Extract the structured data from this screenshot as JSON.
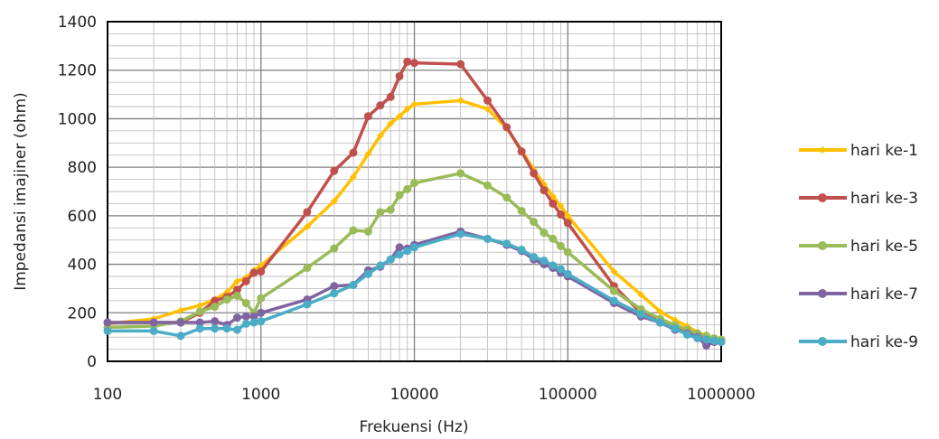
{
  "chart_data": {
    "type": "line",
    "title": "",
    "xlabel": "Frekuensi (Hz)",
    "ylabel": "Impedansi imajiner (ohm)",
    "x_scale": "log",
    "xlim": [
      100,
      1000000
    ],
    "ylim": [
      0,
      1400
    ],
    "x_ticks": [
      100,
      1000,
      10000,
      100000,
      1000000
    ],
    "x_tick_labels": [
      "100",
      "1000",
      "10000",
      "100000",
      "1000000"
    ],
    "y_ticks": [
      0,
      200,
      400,
      600,
      800,
      1000,
      1200,
      1400
    ],
    "y_tick_labels": [
      "0",
      "200",
      "400",
      "600",
      "800",
      "1000",
      "1200",
      "1400"
    ],
    "grid": "on",
    "legend_position": "right",
    "series": [
      {
        "name": "hari ke-1",
        "color": "#FFC000",
        "marker": "diamond",
        "points": [
          [
            100,
            155
          ],
          [
            200,
            175
          ],
          [
            300,
            210
          ],
          [
            400,
            230
          ],
          [
            500,
            255
          ],
          [
            600,
            285
          ],
          [
            700,
            330
          ],
          [
            800,
            345
          ],
          [
            900,
            375
          ],
          [
            1000,
            395
          ],
          [
            2000,
            555
          ],
          [
            3000,
            660
          ],
          [
            4000,
            760
          ],
          [
            5000,
            855
          ],
          [
            6000,
            930
          ],
          [
            7000,
            980
          ],
          [
            8000,
            1010
          ],
          [
            9000,
            1040
          ],
          [
            10000,
            1060
          ],
          [
            20000,
            1075
          ],
          [
            30000,
            1040
          ],
          [
            40000,
            960
          ],
          [
            50000,
            870
          ],
          [
            60000,
            790
          ],
          [
            70000,
            730
          ],
          [
            80000,
            680
          ],
          [
            90000,
            640
          ],
          [
            100000,
            600
          ],
          [
            200000,
            370
          ],
          [
            300000,
            275
          ],
          [
            400000,
            205
          ],
          [
            500000,
            170
          ],
          [
            600000,
            145
          ],
          [
            700000,
            120
          ],
          [
            800000,
            105
          ],
          [
            900000,
            95
          ],
          [
            1000000,
            90
          ]
        ]
      },
      {
        "name": "hari ke-3",
        "color": "#C0504D",
        "marker": "circle",
        "points": [
          [
            100,
            160
          ],
          [
            200,
            160
          ],
          [
            300,
            160
          ],
          [
            400,
            200
          ],
          [
            500,
            250
          ],
          [
            600,
            265
          ],
          [
            700,
            295
          ],
          [
            800,
            330
          ],
          [
            900,
            365
          ],
          [
            1000,
            370
          ],
          [
            2000,
            615
          ],
          [
            3000,
            785
          ],
          [
            4000,
            860
          ],
          [
            5000,
            1010
          ],
          [
            6000,
            1055
          ],
          [
            7000,
            1090
          ],
          [
            8000,
            1175
          ],
          [
            9000,
            1235
          ],
          [
            10000,
            1230
          ],
          [
            20000,
            1225
          ],
          [
            30000,
            1075
          ],
          [
            40000,
            965
          ],
          [
            50000,
            865
          ],
          [
            60000,
            775
          ],
          [
            70000,
            705
          ],
          [
            80000,
            650
          ],
          [
            90000,
            605
          ],
          [
            100000,
            570
          ],
          [
            200000,
            310
          ],
          [
            300000,
            200
          ],
          [
            400000,
            170
          ],
          [
            500000,
            145
          ],
          [
            600000,
            125
          ],
          [
            700000,
            110
          ],
          [
            800000,
            95
          ],
          [
            900000,
            85
          ],
          [
            1000000,
            80
          ]
        ]
      },
      {
        "name": "hari ke-5",
        "color": "#9BBB59",
        "marker": "circle",
        "points": [
          [
            100,
            140
          ],
          [
            200,
            145
          ],
          [
            300,
            165
          ],
          [
            400,
            205
          ],
          [
            500,
            225
          ],
          [
            600,
            255
          ],
          [
            700,
            270
          ],
          [
            800,
            240
          ],
          [
            900,
            200
          ],
          [
            1000,
            260
          ],
          [
            2000,
            385
          ],
          [
            3000,
            465
          ],
          [
            4000,
            540
          ],
          [
            5000,
            535
          ],
          [
            6000,
            615
          ],
          [
            7000,
            625
          ],
          [
            8000,
            685
          ],
          [
            9000,
            710
          ],
          [
            10000,
            735
          ],
          [
            20000,
            775
          ],
          [
            30000,
            725
          ],
          [
            40000,
            675
          ],
          [
            50000,
            620
          ],
          [
            60000,
            575
          ],
          [
            70000,
            530
          ],
          [
            80000,
            505
          ],
          [
            90000,
            475
          ],
          [
            100000,
            450
          ],
          [
            200000,
            290
          ],
          [
            300000,
            215
          ],
          [
            400000,
            175
          ],
          [
            500000,
            150
          ],
          [
            600000,
            130
          ],
          [
            700000,
            115
          ],
          [
            800000,
            105
          ],
          [
            900000,
            95
          ],
          [
            1000000,
            90
          ]
        ]
      },
      {
        "name": "hari ke-7",
        "color": "#8064A2",
        "marker": "circle",
        "points": [
          [
            100,
            160
          ],
          [
            200,
            160
          ],
          [
            300,
            160
          ],
          [
            400,
            160
          ],
          [
            500,
            165
          ],
          [
            600,
            150
          ],
          [
            700,
            180
          ],
          [
            800,
            185
          ],
          [
            900,
            185
          ],
          [
            1000,
            200
          ],
          [
            2000,
            255
          ],
          [
            3000,
            310
          ],
          [
            4000,
            315
          ],
          [
            5000,
            375
          ],
          [
            6000,
            390
          ],
          [
            7000,
            420
          ],
          [
            8000,
            470
          ],
          [
            9000,
            465
          ],
          [
            10000,
            480
          ],
          [
            20000,
            535
          ],
          [
            30000,
            505
          ],
          [
            40000,
            480
          ],
          [
            50000,
            455
          ],
          [
            60000,
            420
          ],
          [
            70000,
            400
          ],
          [
            80000,
            385
          ],
          [
            90000,
            365
          ],
          [
            100000,
            350
          ],
          [
            200000,
            240
          ],
          [
            300000,
            185
          ],
          [
            400000,
            160
          ],
          [
            500000,
            130
          ],
          [
            600000,
            115
          ],
          [
            700000,
            100
          ],
          [
            800000,
            65
          ],
          [
            900000,
            80
          ],
          [
            1000000,
            80
          ]
        ]
      },
      {
        "name": "hari ke-9",
        "color": "#4BACC6",
        "marker": "circle",
        "points": [
          [
            100,
            125
          ],
          [
            200,
            125
          ],
          [
            300,
            105
          ],
          [
            400,
            135
          ],
          [
            500,
            135
          ],
          [
            600,
            135
          ],
          [
            700,
            130
          ],
          [
            800,
            155
          ],
          [
            900,
            160
          ],
          [
            1000,
            165
          ],
          [
            2000,
            235
          ],
          [
            3000,
            280
          ],
          [
            4000,
            315
          ],
          [
            5000,
            360
          ],
          [
            6000,
            395
          ],
          [
            7000,
            420
          ],
          [
            8000,
            440
          ],
          [
            9000,
            455
          ],
          [
            10000,
            470
          ],
          [
            20000,
            525
          ],
          [
            30000,
            505
          ],
          [
            40000,
            485
          ],
          [
            50000,
            460
          ],
          [
            60000,
            430
          ],
          [
            70000,
            415
          ],
          [
            80000,
            395
          ],
          [
            90000,
            380
          ],
          [
            100000,
            360
          ],
          [
            200000,
            250
          ],
          [
            300000,
            195
          ],
          [
            400000,
            160
          ],
          [
            500000,
            135
          ],
          [
            600000,
            110
          ],
          [
            700000,
            95
          ],
          [
            800000,
            90
          ],
          [
            900000,
            85
          ],
          [
            1000000,
            80
          ]
        ]
      }
    ]
  }
}
